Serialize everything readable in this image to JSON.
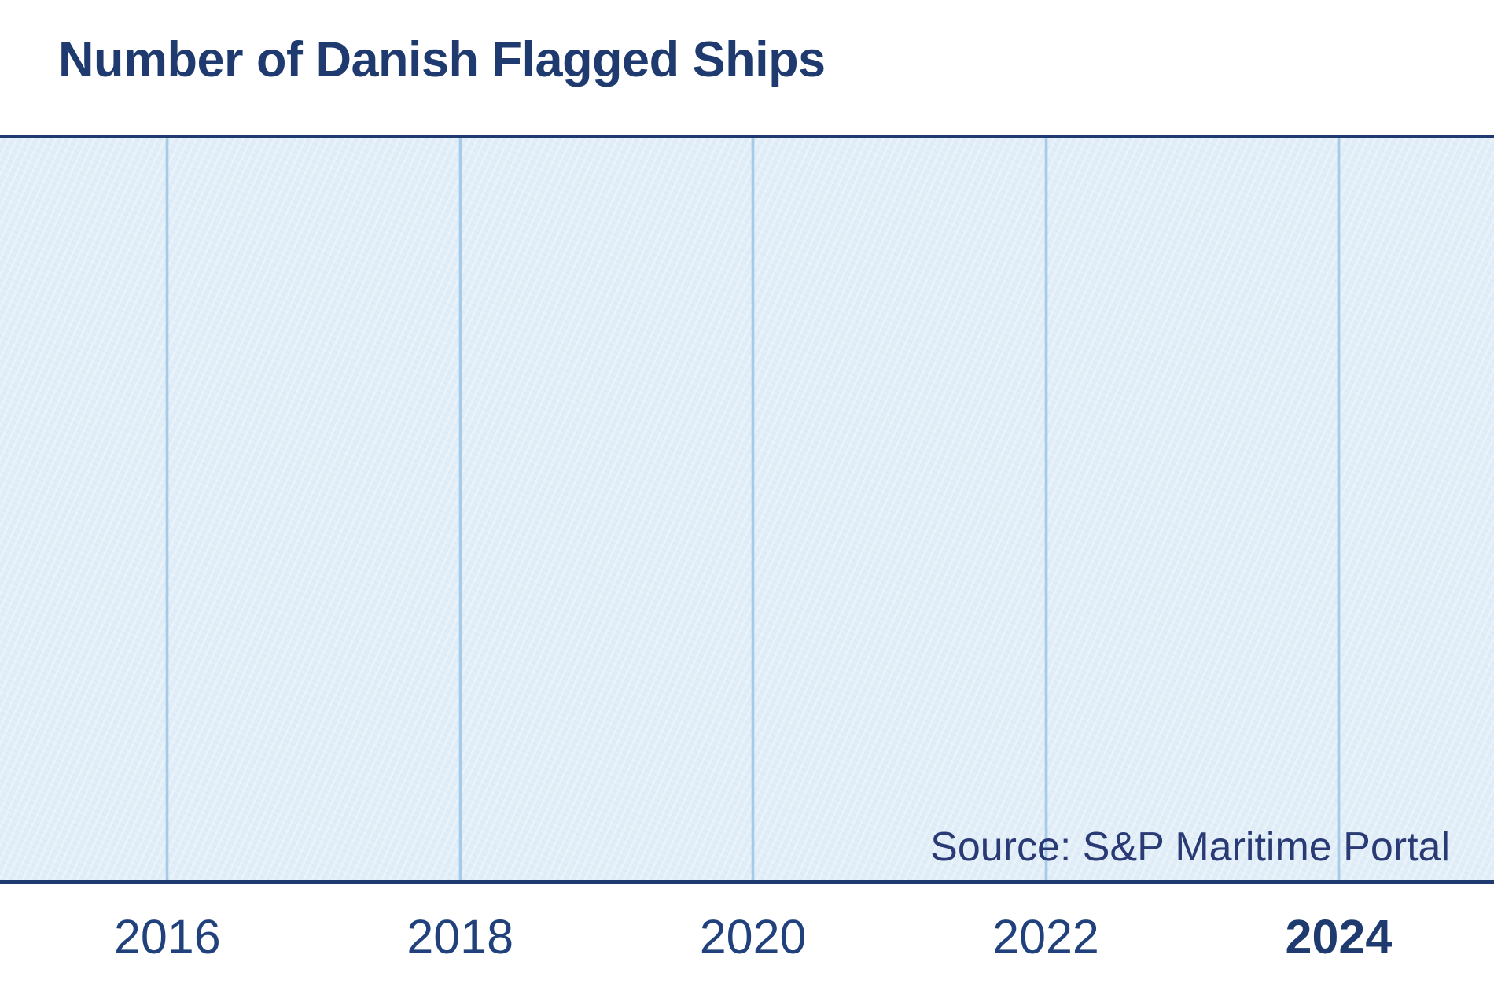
{
  "title": "Number of Danish Flagged Ships",
  "source_label": "Source: S&P Maritime Portal",
  "colors": {
    "navy": "#1e3a6e",
    "plot_bg": "#e1eef7",
    "gridline": "#a5cbe9",
    "tick_label": "#21417c",
    "source_text": "#2a3a75"
  },
  "chart_data": {
    "type": "line",
    "title": "Number of Danish Flagged Ships",
    "xlabel": "",
    "ylabel": "",
    "x_ticks": [
      "2016",
      "2018",
      "2020",
      "2022",
      "2024"
    ],
    "highlighted_tick": "2024",
    "xlim_years_estimate": [
      2014.9,
      2025.1
    ],
    "series": [],
    "values_visible": "none - plot area is empty, no data series, points, or y-axis scale are rendered",
    "grid": "vertical gridlines at each x tick only",
    "legend": "none",
    "annotations": [
      "Source: S&P Maritime Portal"
    ]
  }
}
